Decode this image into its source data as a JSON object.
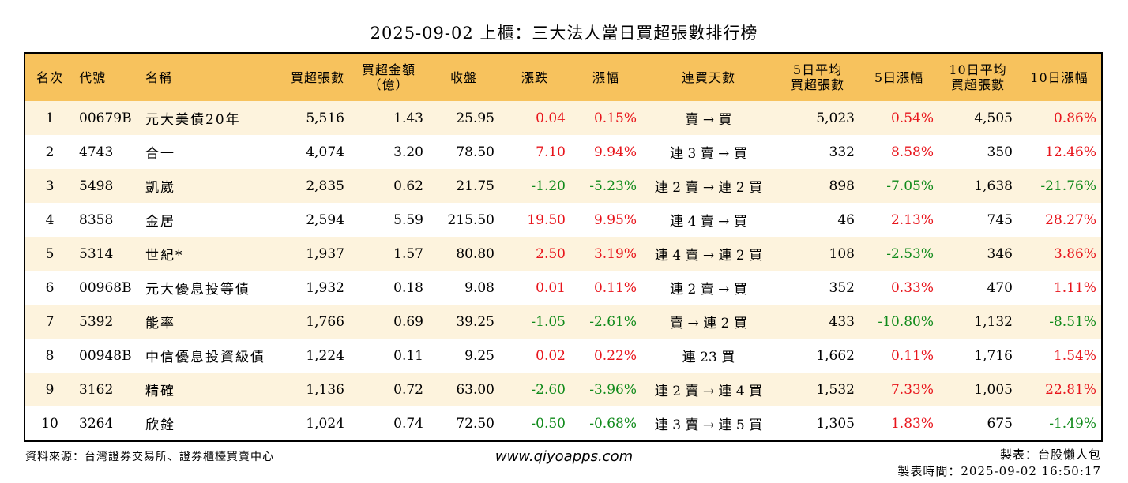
{
  "title": "2025-09-02 上櫃：三大法人當日買超張數排行榜",
  "headers": {
    "rank": "名次",
    "code": "代號",
    "name": "名稱",
    "buy_lots": "買超張數",
    "buy_amount_line1": "買超金額",
    "buy_amount_line2": "（億）",
    "close": "收盤",
    "change": "漲跌",
    "change_pct": "漲幅",
    "streak": "連買天數",
    "avg5_line1": "5日平均",
    "avg5_line2": "買超張數",
    "chg5": "5日漲幅",
    "avg10_line1": "10日平均",
    "avg10_line2": "買超張數",
    "chg10": "10日漲幅"
  },
  "colors": {
    "header_bg": "#f7c25d",
    "stripe_bg": "#fdf3dd",
    "up": "#e8141b",
    "down": "#0f8a1a"
  },
  "rows": [
    {
      "rank": "1",
      "code": "00679B",
      "name": "元大美債20年",
      "buy_lots": "5,516",
      "buy_amount": "1.43",
      "close": "25.95",
      "change": "0.04",
      "change_pct": "0.15%",
      "streak": "賣 → 買",
      "avg5": "5,023",
      "chg5": "0.54%",
      "avg10": "4,505",
      "chg10": "0.86%"
    },
    {
      "rank": "2",
      "code": "4743",
      "name": "合一",
      "buy_lots": "4,074",
      "buy_amount": "3.20",
      "close": "78.50",
      "change": "7.10",
      "change_pct": "9.94%",
      "streak": "連 3 賣 → 買",
      "avg5": "332",
      "chg5": "8.58%",
      "avg10": "350",
      "chg10": "12.46%"
    },
    {
      "rank": "3",
      "code": "5498",
      "name": "凱崴",
      "buy_lots": "2,835",
      "buy_amount": "0.62",
      "close": "21.75",
      "change": "-1.20",
      "change_pct": "-5.23%",
      "streak": "連 2 賣 → 連 2 買",
      "avg5": "898",
      "chg5": "-7.05%",
      "avg10": "1,638",
      "chg10": "-21.76%"
    },
    {
      "rank": "4",
      "code": "8358",
      "name": "金居",
      "buy_lots": "2,594",
      "buy_amount": "5.59",
      "close": "215.50",
      "change": "19.50",
      "change_pct": "9.95%",
      "streak": "連 4 賣 → 買",
      "avg5": "46",
      "chg5": "2.13%",
      "avg10": "745",
      "chg10": "28.27%"
    },
    {
      "rank": "5",
      "code": "5314",
      "name": "世紀*",
      "buy_lots": "1,937",
      "buy_amount": "1.57",
      "close": "80.80",
      "change": "2.50",
      "change_pct": "3.19%",
      "streak": "連 4 賣 → 連 2 買",
      "avg5": "108",
      "chg5": "-2.53%",
      "avg10": "346",
      "chg10": "3.86%"
    },
    {
      "rank": "6",
      "code": "00968B",
      "name": "元大優息投等債",
      "buy_lots": "1,932",
      "buy_amount": "0.18",
      "close": "9.08",
      "change": "0.01",
      "change_pct": "0.11%",
      "streak": "連 2 賣 → 買",
      "avg5": "352",
      "chg5": "0.33%",
      "avg10": "470",
      "chg10": "1.11%"
    },
    {
      "rank": "7",
      "code": "5392",
      "name": "能率",
      "buy_lots": "1,766",
      "buy_amount": "0.69",
      "close": "39.25",
      "change": "-1.05",
      "change_pct": "-2.61%",
      "streak": "賣 → 連 2 買",
      "avg5": "433",
      "chg5": "-10.80%",
      "avg10": "1,132",
      "chg10": "-8.51%"
    },
    {
      "rank": "8",
      "code": "00948B",
      "name": "中信優息投資級債",
      "buy_lots": "1,224",
      "buy_amount": "0.11",
      "close": "9.25",
      "change": "0.02",
      "change_pct": "0.22%",
      "streak": "連 23 買",
      "avg5": "1,662",
      "chg5": "0.11%",
      "avg10": "1,716",
      "chg10": "1.54%"
    },
    {
      "rank": "9",
      "code": "3162",
      "name": "精確",
      "buy_lots": "1,136",
      "buy_amount": "0.72",
      "close": "63.00",
      "change": "-2.60",
      "change_pct": "-3.96%",
      "streak": "連 2 賣 → 連 4 買",
      "avg5": "1,532",
      "chg5": "7.33%",
      "avg10": "1,005",
      "chg10": "22.81%"
    },
    {
      "rank": "10",
      "code": "3264",
      "name": "欣銓",
      "buy_lots": "1,024",
      "buy_amount": "0.74",
      "close": "72.50",
      "change": "-0.50",
      "change_pct": "-0.68%",
      "streak": "連 3 賣 → 連 5 買",
      "avg5": "1,305",
      "chg5": "1.83%",
      "avg10": "675",
      "chg10": "-1.49%"
    }
  ],
  "footer": {
    "source": "資料來源：台灣證券交易所、證券櫃檯買賣中心",
    "website": "www.qiyoapps.com",
    "maker": "製表：台股懶人包",
    "made_time": "製表時間：2025-09-02 16:50:17"
  }
}
